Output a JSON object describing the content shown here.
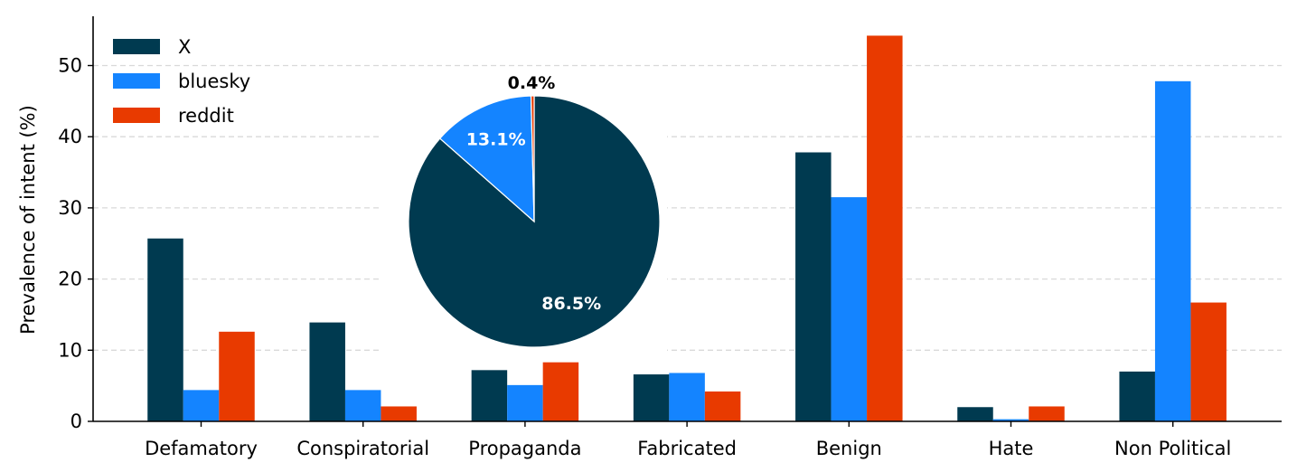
{
  "chart_data": {
    "type": "bar",
    "ylabel": "Prevalence of intent (%)",
    "ylim": [
      0,
      57
    ],
    "yticks": [
      0,
      10,
      20,
      30,
      40,
      50
    ],
    "grid": "y-dashed",
    "legend_position": "top-left",
    "categories": [
      "Defamatory",
      "Conspiratorial",
      "Propaganda",
      "Fabricated",
      "Benign",
      "Hate",
      "Non Political"
    ],
    "series": [
      {
        "name": "X",
        "color": "#003a50",
        "values": [
          25.7,
          13.9,
          7.2,
          6.6,
          37.8,
          2.0,
          7.0
        ]
      },
      {
        "name": "bluesky",
        "color": "#1484ff",
        "values": [
          4.4,
          4.4,
          5.1,
          6.8,
          31.5,
          0.3,
          47.8
        ]
      },
      {
        "name": "reddit",
        "color": "#e83a00",
        "values": [
          12.6,
          2.1,
          8.3,
          4.2,
          54.2,
          2.1,
          16.7
        ]
      }
    ],
    "inset_pie": {
      "type": "pie",
      "slices": [
        {
          "series": "X",
          "value": 86.5,
          "label": "86.5%",
          "color": "#003a50",
          "label_color": "#ffffff"
        },
        {
          "series": "bluesky",
          "value": 13.1,
          "label": "13.1%",
          "color": "#1484ff",
          "label_color": "#ffffff"
        },
        {
          "series": "reddit",
          "value": 0.4,
          "label": "0.4%",
          "color": "#e83a00",
          "label_color": "#000000"
        }
      ]
    }
  }
}
